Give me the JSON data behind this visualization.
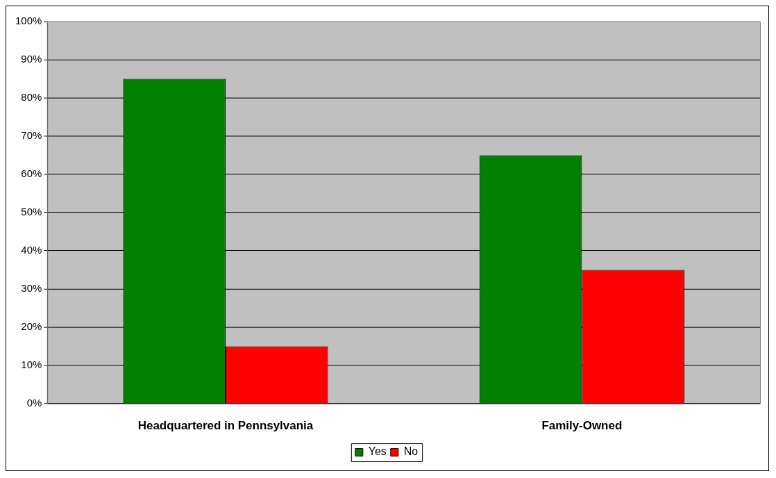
{
  "chart_data": {
    "type": "bar",
    "categories": [
      "Headquartered in Pennsylvania",
      "Family-Owned"
    ],
    "series": [
      {
        "name": "Yes",
        "color": "#008000",
        "values": [
          85,
          65
        ]
      },
      {
        "name": "No",
        "color": "#ff0000",
        "values": [
          15,
          35
        ]
      }
    ],
    "ylim": [
      0,
      100
    ],
    "yticks": [
      {
        "value": 0,
        "label": "0%"
      },
      {
        "value": 10,
        "label": "10%"
      },
      {
        "value": 20,
        "label": "20%"
      },
      {
        "value": 30,
        "label": "30%"
      },
      {
        "value": 40,
        "label": "40%"
      },
      {
        "value": 50,
        "label": "50%"
      },
      {
        "value": 60,
        "label": "60%"
      },
      {
        "value": 70,
        "label": "70%"
      },
      {
        "value": 80,
        "label": "80%"
      },
      {
        "value": 90,
        "label": "90%"
      },
      {
        "value": 100,
        "label": "100%"
      }
    ],
    "grid": "y",
    "legend": "bottom"
  }
}
